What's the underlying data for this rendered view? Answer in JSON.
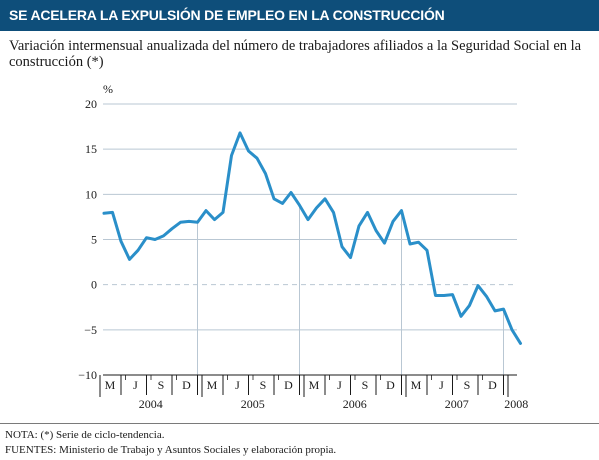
{
  "header": {
    "title": "SE ACELERA LA EXPULSIÓN DE EMPLEO EN LA CONSTRUCCIÓN",
    "subtitle": "Variación intermensual anualizada del número de trabajadores afiliados a la Seguridad Social en la construcción (*)"
  },
  "colors": {
    "banner": "#0e4e7a",
    "line": "#2a8fc9",
    "grid": "#b9c7d3"
  },
  "notes": {
    "nota": "NOTA: (*) Serie de ciclo-tendencia.",
    "fuentes": "FUENTES: Ministerio de Trabajo y Asuntos Sociales y elaboración propia."
  },
  "chart_data": {
    "type": "line",
    "ylabel": "%",
    "ylim": [
      -10,
      20
    ],
    "yticks": [
      20,
      15,
      10,
      5,
      0,
      -5,
      -10
    ],
    "grid": true,
    "month_labels": [
      "M",
      "J",
      "S",
      "D",
      "M",
      "J",
      "S",
      "D",
      "M",
      "J",
      "S",
      "D",
      "M",
      "J",
      "S",
      "D"
    ],
    "years": [
      "2004",
      "2005",
      "2006",
      "2007",
      "2008"
    ],
    "x": [
      "2004-01",
      "2004-02",
      "2004-03",
      "2004-04",
      "2004-05",
      "2004-06",
      "2004-07",
      "2004-08",
      "2004-09",
      "2004-10",
      "2004-11",
      "2004-12",
      "2005-01",
      "2005-02",
      "2005-03",
      "2005-04",
      "2005-05",
      "2005-06",
      "2005-07",
      "2005-08",
      "2005-09",
      "2005-10",
      "2005-11",
      "2005-12",
      "2006-01",
      "2006-02",
      "2006-03",
      "2006-04",
      "2006-05",
      "2006-06",
      "2006-07",
      "2006-08",
      "2006-09",
      "2006-10",
      "2006-11",
      "2006-12",
      "2007-01",
      "2007-02",
      "2007-03",
      "2007-04",
      "2007-05",
      "2007-06",
      "2007-07",
      "2007-08",
      "2007-09",
      "2007-10",
      "2007-11",
      "2007-12",
      "2008-01",
      "2008-02"
    ],
    "values": [
      7.9,
      8.0,
      4.8,
      2.8,
      3.8,
      5.2,
      5.0,
      5.4,
      6.2,
      6.9,
      7.0,
      6.9,
      8.2,
      7.2,
      8.0,
      14.3,
      16.8,
      14.8,
      14.0,
      12.3,
      9.5,
      9.0,
      10.2,
      8.8,
      7.2,
      8.5,
      9.5,
      8.0,
      4.2,
      3.0,
      6.5,
      8.0,
      6.0,
      4.6,
      7.0,
      8.2,
      4.5,
      4.7,
      3.8,
      -1.2,
      -1.2,
      -1.1,
      -3.5,
      -2.3,
      -0.1,
      -1.3,
      -2.9,
      -2.7,
      -5.0,
      -6.5
    ]
  }
}
